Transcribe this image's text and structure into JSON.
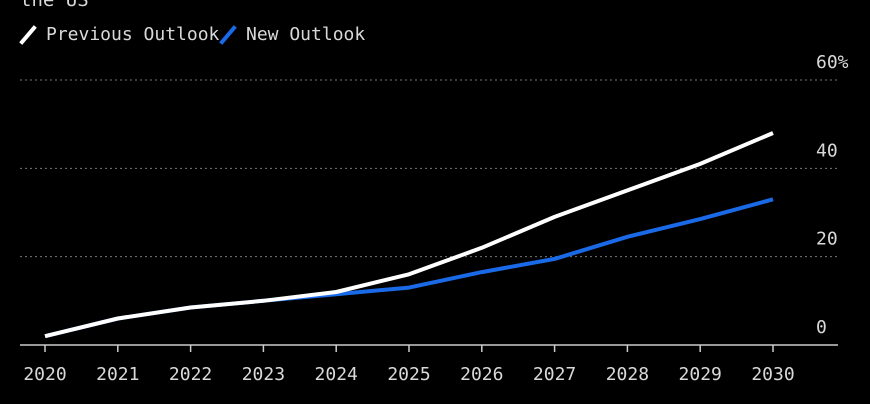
{
  "chart_data": {
    "type": "line",
    "title_fragment": "the US",
    "x": [
      "2020",
      "2021",
      "2022",
      "2023",
      "2024",
      "2025",
      "2026",
      "2027",
      "2028",
      "2029",
      "2030"
    ],
    "y_ticks": [
      "0",
      "20",
      "40",
      "60%"
    ],
    "ylim": [
      0,
      60
    ],
    "grid": true,
    "legend_position": "top-left",
    "series": [
      {
        "name": "Previous Outlook",
        "color": "#ffffff",
        "values": [
          2,
          6,
          8.5,
          10,
          12,
          16,
          22,
          29,
          35,
          41,
          48
        ]
      },
      {
        "name": "New Outlook",
        "color": "#1a6ae8",
        "values": [
          2,
          6,
          8.5,
          10,
          11.5,
          13,
          16.5,
          19.5,
          24.5,
          28.5,
          33
        ]
      }
    ]
  },
  "colors": {
    "background": "#000000",
    "text": "#d9d9d9",
    "grid": "#777777",
    "axis": "#cccccc"
  }
}
